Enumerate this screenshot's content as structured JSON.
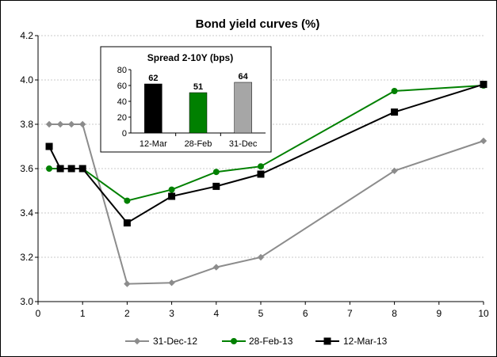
{
  "chart_data": [
    {
      "type": "line",
      "title": "Bond yield curves (%)",
      "xlabel": "",
      "ylabel": "",
      "xlim": [
        0,
        10
      ],
      "ylim": [
        3.0,
        4.2
      ],
      "xticks": [
        "0",
        "1",
        "2",
        "3",
        "4",
        "5",
        "6",
        "7",
        "8",
        "9",
        "10"
      ],
      "yticks": [
        "3.0",
        "3.2",
        "3.4",
        "3.6",
        "3.8",
        "4.0",
        "4.2"
      ],
      "grid": "horizontal",
      "legend_position": "bottom",
      "series": [
        {
          "name": "31-Dec-12",
          "color": "#8c8c8c",
          "marker": "diamond",
          "x": [
            0.25,
            0.5,
            0.75,
            1,
            2,
            3,
            4,
            5,
            8,
            10
          ],
          "y": [
            3.8,
            3.8,
            3.8,
            3.8,
            3.08,
            3.085,
            3.155,
            3.2,
            3.59,
            3.725
          ]
        },
        {
          "name": "28-Feb-13",
          "color": "#008000",
          "marker": "circle",
          "x": [
            0.25,
            0.5,
            0.75,
            1,
            2,
            3,
            4,
            5,
            8,
            10
          ],
          "y": [
            3.6,
            3.6,
            3.6,
            3.6,
            3.455,
            3.505,
            3.585,
            3.61,
            3.95,
            3.975
          ]
        },
        {
          "name": "12-Mar-13",
          "color": "#000000",
          "marker": "square",
          "x": [
            0.25,
            0.5,
            0.75,
            1,
            2,
            3,
            4,
            5,
            8,
            10
          ],
          "y": [
            3.7,
            3.6,
            3.6,
            3.6,
            3.355,
            3.475,
            3.52,
            3.575,
            3.855,
            3.98
          ]
        }
      ]
    },
    {
      "type": "bar",
      "title": "Spread 2-10Y (bps)",
      "categories": [
        "12-Mar",
        "28-Feb",
        "31-Dec"
      ],
      "values": [
        62,
        51,
        64
      ],
      "value_labels": [
        "62",
        "51",
        "64"
      ],
      "colors": [
        "#000000",
        "#008000",
        "#a6a6a6"
      ],
      "ylim": [
        0,
        80
      ],
      "yticks": [
        "0",
        "20",
        "40",
        "60",
        "80"
      ]
    }
  ]
}
